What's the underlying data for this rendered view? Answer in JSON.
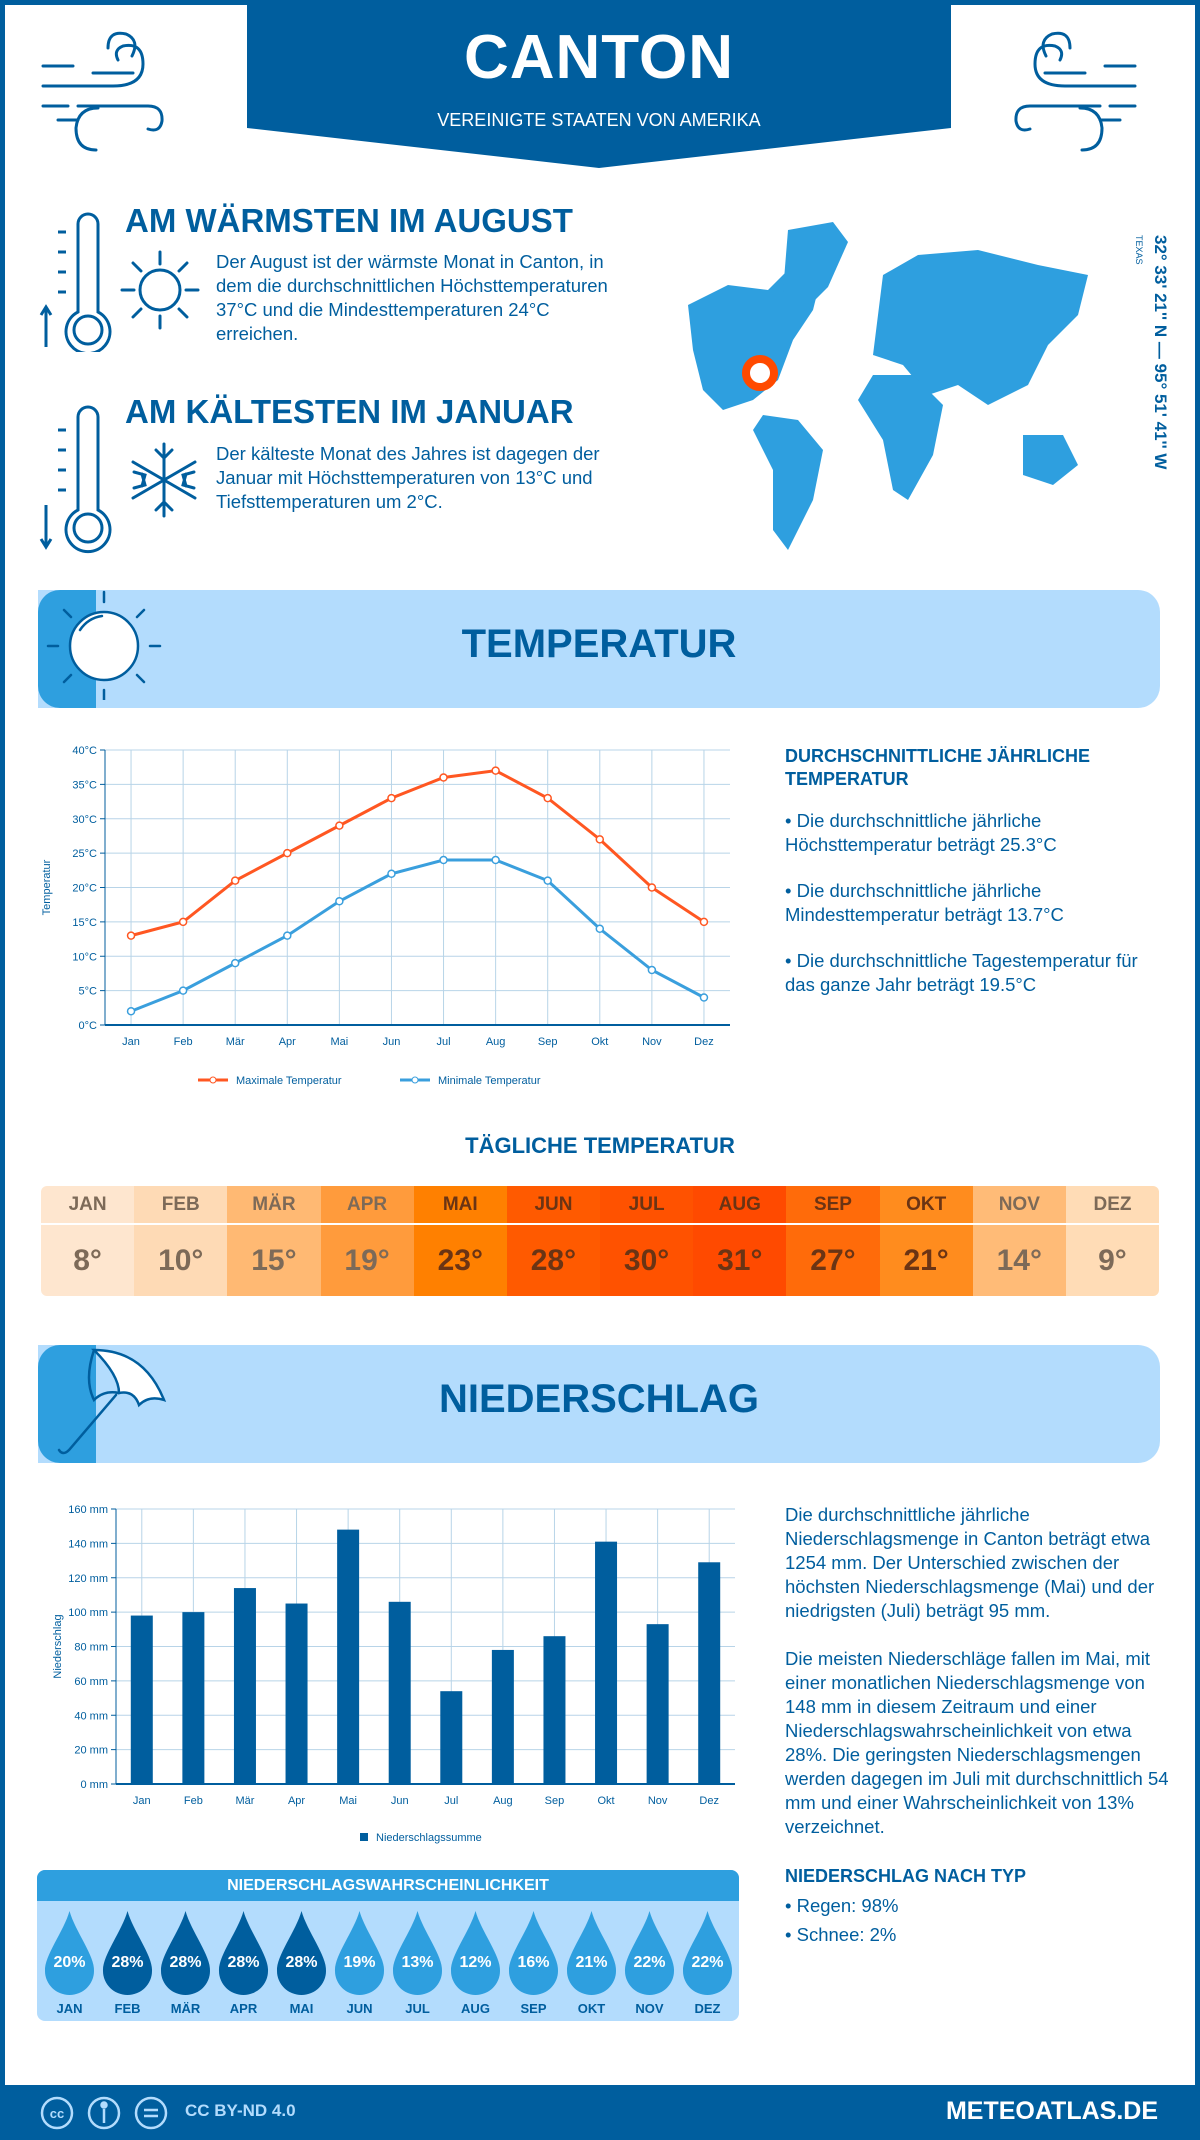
{
  "header": {
    "title": "CANTON",
    "subtitle": "VEREINIGTE STAATEN VON AMERIKA"
  },
  "warmest": {
    "title": "AM WÄRMSTEN IM AUGUST",
    "text": "Der August ist der wärmste Monat in Canton, in dem die durchschnittlichen Höchsttemperaturen 37°C und die Mindesttemperaturen 24°C erreichen."
  },
  "coldest": {
    "title": "AM KÄLTESTEN IM JANUAR",
    "text": "Der kälteste Monat des Jahres ist dagegen der Januar mit Höchsttemperaturen von 13°C und Tiefsttemperaturen um 2°C."
  },
  "location": {
    "coords": "32° 33' 21'' N — 95° 51' 41'' W",
    "region": "TEXAS"
  },
  "temperature": {
    "section_title": "TEMPERATUR",
    "side_title": "DURCHSCHNITTLICHE JÄHRLICHE TEMPERATUR",
    "bullets": [
      "• Die durchschnittliche jährliche Höchsttemperatur beträgt 25.3°C",
      "• Die durchschnittliche jährliche Mindesttemperatur beträgt 13.7°C",
      "• Die durchschnittliche Tagestemperatur für das ganze Jahr beträgt 19.5°C"
    ]
  },
  "daily": {
    "title": "TÄGLICHE TEMPERATUR",
    "months": [
      "JAN",
      "FEB",
      "MÄR",
      "APR",
      "MAI",
      "JUN",
      "JUL",
      "AUG",
      "SEP",
      "OKT",
      "NOV",
      "DEZ"
    ],
    "values": [
      "8°",
      "10°",
      "15°",
      "19°",
      "23°",
      "28°",
      "30°",
      "31°",
      "27°",
      "21°",
      "14°",
      "9°"
    ],
    "colors": [
      "#fee6cf",
      "#fedab5",
      "#ffb973",
      "#ff9b3c",
      "#ff8000",
      "#ff5a00",
      "#ff5200",
      "#ff4a00",
      "#ff6b0a",
      "#ff8c1e",
      "#ffbb77",
      "#ffdcb6"
    ]
  },
  "precipitation": {
    "section_title": "NIEDERSCHLAG",
    "paragraphs": [
      "Die durchschnittliche jährliche Niederschlagsmenge in Canton beträgt etwa 1254 mm. Der Unterschied zwischen der höchsten Niederschlagsmenge (Mai) und der niedrigsten (Juli) beträgt 95 mm.",
      "Die meisten Niederschläge fallen im Mai, mit einer monatlichen Niederschlagsmenge von 148 mm in diesem Zeitraum und einer Niederschlagswahrscheinlichkeit von etwa 28%. Die geringsten Niederschlagsmengen werden dagegen im Juli mit durchschnittlich 54 mm und einer Wahrscheinlichkeit von 13% verzeichnet."
    ],
    "type_title": "NIEDERSCHLAG NACH TYP",
    "types": [
      "• Regen: 98%",
      "• Schnee: 2%"
    ]
  },
  "probability": {
    "title": "NIEDERSCHLAGSWAHRSCHEINLICHKEIT",
    "months": [
      "JAN",
      "FEB",
      "MÄR",
      "APR",
      "MAI",
      "JUN",
      "JUL",
      "AUG",
      "SEP",
      "OKT",
      "NOV",
      "DEZ"
    ],
    "values": [
      "20%",
      "28%",
      "28%",
      "28%",
      "28%",
      "19%",
      "13%",
      "12%",
      "16%",
      "21%",
      "22%",
      "22%"
    ]
  },
  "footer": {
    "license": "CC BY-ND 4.0",
    "site": "METEOATLAS.DE"
  },
  "colors": {
    "dark_blue": "#005e9e",
    "mid_blue": "#2e9fdf",
    "light_blue": "#b3dcfd",
    "max_line": "#ff5722",
    "min_line": "#3a9fdd"
  },
  "chart_data": [
    {
      "type": "line",
      "categories": [
        "Jan",
        "Feb",
        "Mär",
        "Apr",
        "Mai",
        "Jun",
        "Jul",
        "Aug",
        "Sep",
        "Okt",
        "Nov",
        "Dez"
      ],
      "series": [
        {
          "name": "Maximale Temperatur",
          "values": [
            13,
            15,
            21,
            25,
            29,
            33,
            36,
            37,
            33,
            27,
            20,
            15
          ]
        },
        {
          "name": "Minimale Temperatur",
          "values": [
            2,
            5,
            9,
            13,
            18,
            22,
            24,
            24,
            21,
            14,
            8,
            4
          ]
        }
      ],
      "ylabel": "Temperatur",
      "ylim": [
        0,
        40
      ],
      "yticks": [
        "0°C",
        "5°C",
        "10°C",
        "15°C",
        "20°C",
        "25°C",
        "30°C",
        "35°C",
        "40°C"
      ],
      "grid": true,
      "legend": "bottom"
    },
    {
      "type": "bar",
      "categories": [
        "Jan",
        "Feb",
        "Mär",
        "Apr",
        "Mai",
        "Jun",
        "Jul",
        "Aug",
        "Sep",
        "Okt",
        "Nov",
        "Dez"
      ],
      "series": [
        {
          "name": "Niederschlagssumme",
          "values": [
            98,
            100,
            114,
            105,
            148,
            106,
            54,
            78,
            86,
            141,
            93,
            129
          ]
        }
      ],
      "ylabel": "Niederschlag",
      "ylim": [
        0,
        160
      ],
      "yticks": [
        "0 mm",
        "20 mm",
        "40 mm",
        "60 mm",
        "80 mm",
        "100 mm",
        "120 mm",
        "140 mm",
        "160 mm"
      ],
      "grid": true,
      "legend": "bottom"
    }
  ]
}
